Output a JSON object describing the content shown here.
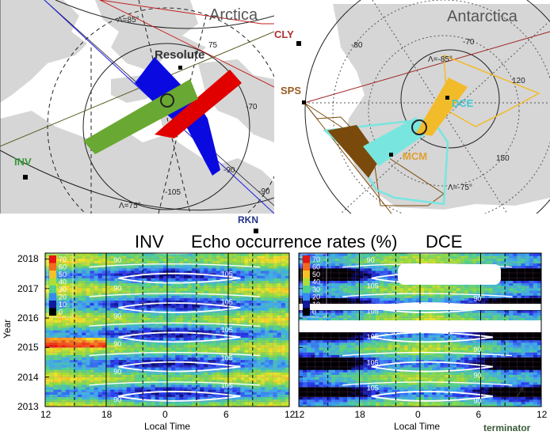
{
  "maps": {
    "arctica": {
      "title": "Arctica",
      "station": "Resolute",
      "site_inv": "INV",
      "lat_labels": [
        "Λ=85°",
        "75",
        "-70",
        "Λ=75°",
        "-90",
        "-105",
        "-90"
      ]
    },
    "antarctica": {
      "title": "Antarctica",
      "site_cly": "CLY",
      "site_sps": "SPS",
      "site_dce": "DCE",
      "site_mcm": "MCM",
      "lat_labels": [
        "-80",
        "-70",
        "Λ=-85°",
        "120",
        "150",
        "Λ=-75°"
      ]
    },
    "site_rkn": "RKN"
  },
  "colors": {
    "inv_radar": "#69a832",
    "rkn_radar": "#0a0ae0",
    "cly_radar": "#e00000",
    "dce_radar": "#f2bb2a",
    "mcm_radar": "#78e6df",
    "sps_radar": "#7a4a0c",
    "land": "#d6d6d6"
  },
  "chart_data": {
    "type": "heatmap",
    "title": "Echo occurrence rates (%)",
    "panels": [
      {
        "name": "INV",
        "xlabel": "Local Time",
        "ylabel": "Year",
        "xticks": [
          "12",
          "18",
          "0",
          "6",
          "12"
        ],
        "yticks": [
          "2013",
          "2014",
          "2015",
          "2016",
          "2017",
          "2018"
        ],
        "ylim": [
          2013,
          2018.2
        ],
        "colorbar": {
          "ticks": [
            "70",
            "60",
            "50",
            "40",
            "30",
            "20",
            "10",
            "0"
          ]
        },
        "contour_labels": [
          "90",
          "105",
          "90",
          "105",
          "90",
          "105",
          "90",
          "105",
          "90",
          "105",
          "90"
        ]
      },
      {
        "name": "DCE",
        "xlabel": "Local Time",
        "xticks": [
          "12",
          "18",
          "0",
          "6",
          "12"
        ],
        "colorbar": {
          "ticks": [
            "70",
            "60",
            "50",
            "40",
            "30",
            "20",
            "10",
            "0"
          ]
        },
        "contour_labels": [
          "90",
          "90",
          "105",
          "90",
          "105",
          "90",
          "105",
          "90",
          "105",
          "90",
          "105",
          "90"
        ],
        "annotation": "terminator"
      }
    ]
  }
}
